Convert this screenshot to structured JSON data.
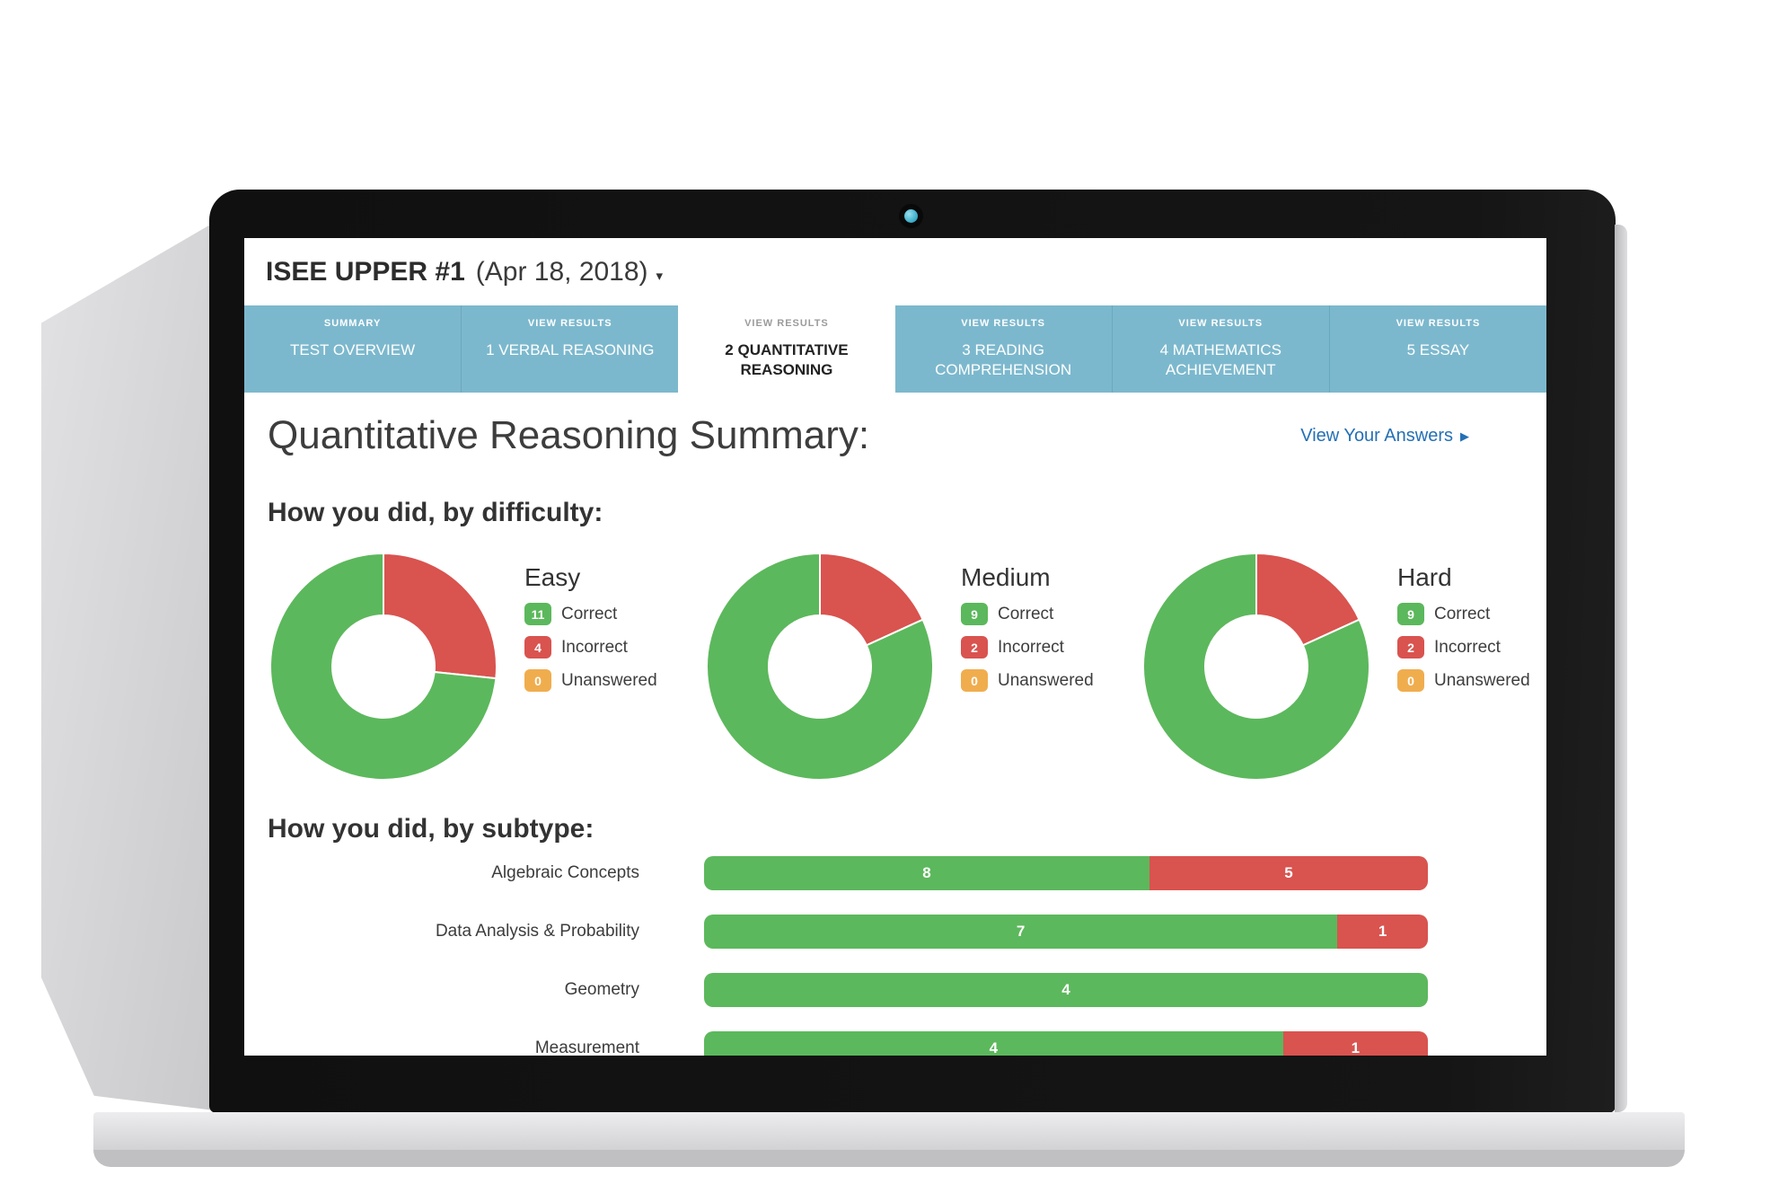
{
  "window": {
    "title_bold": "ISEE UPPER #1",
    "title_date": "(Apr 18, 2018)"
  },
  "tabs": [
    {
      "small": "SUMMARY",
      "label": "TEST OVERVIEW",
      "active": false
    },
    {
      "small": "VIEW RESULTS",
      "label": "1 VERBAL REASONING",
      "active": false
    },
    {
      "small": "VIEW RESULTS",
      "label": "2 QUANTITATIVE REASONING",
      "active": true
    },
    {
      "small": "VIEW RESULTS",
      "label": "3 READING COMPREHENSION",
      "active": false
    },
    {
      "small": "VIEW RESULTS",
      "label": "4 MATHEMATICS ACHIEVEMENT",
      "active": false
    },
    {
      "small": "VIEW RESULTS",
      "label": "5 ESSAY",
      "active": false
    }
  ],
  "page": {
    "title": "Quantitative Reasoning Summary:",
    "view_answers_label": "View Your Answers",
    "difficulty_heading": "How you did, by difficulty:",
    "subtype_heading": "How you did, by subtype:"
  },
  "colors": {
    "correct": "#5CB85C",
    "incorrect": "#D9534F",
    "unanswered": "#F0AD4E",
    "tab_blue": "#7CB8CD",
    "link_blue": "#2470B5"
  },
  "chart_data": [
    {
      "type": "pie",
      "variant": "donut",
      "title": "How you did, by difficulty:",
      "legend_labels": [
        "Correct",
        "Incorrect",
        "Unanswered"
      ],
      "groups": [
        {
          "title": "Easy",
          "correct": 11,
          "incorrect": 4,
          "unanswered": 0
        },
        {
          "title": "Medium",
          "correct": 9,
          "incorrect": 2,
          "unanswered": 0
        },
        {
          "title": "Hard",
          "correct": 9,
          "incorrect": 2,
          "unanswered": 0
        }
      ]
    },
    {
      "type": "bar",
      "orientation": "horizontal",
      "stacked": true,
      "normalized": true,
      "title": "How you did, by subtype:",
      "categories": [
        "Algebraic Concepts",
        "Data Analysis & Probability",
        "Geometry",
        "Measurement"
      ],
      "series": [
        {
          "name": "Correct",
          "values": [
            8,
            7,
            4,
            4
          ]
        },
        {
          "name": "Incorrect",
          "values": [
            5,
            1,
            0,
            1
          ]
        }
      ]
    }
  ]
}
